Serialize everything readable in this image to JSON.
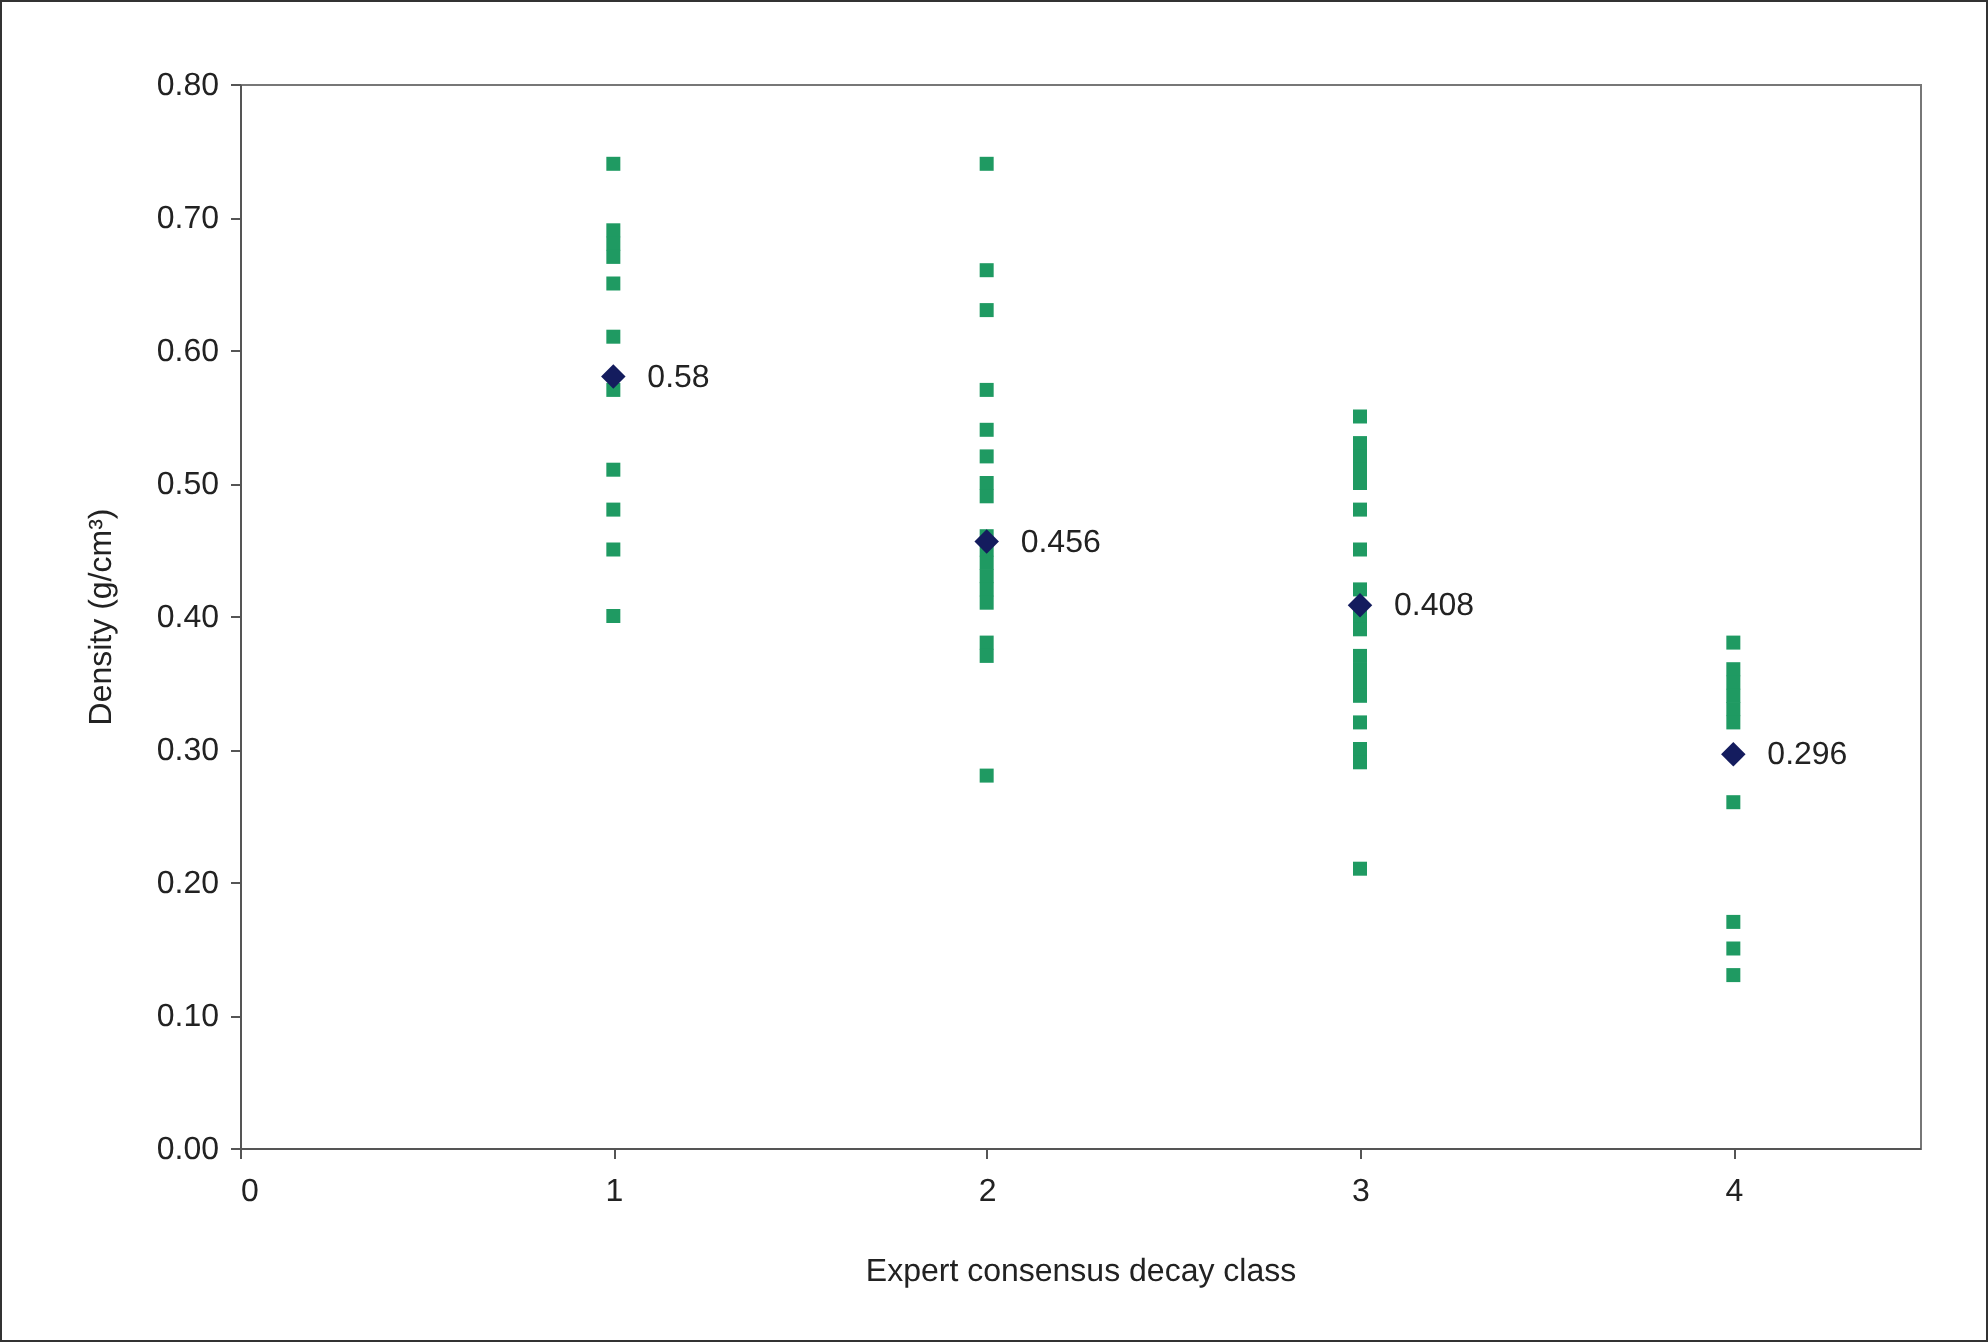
{
  "chart_data": {
    "type": "scatter",
    "xlabel": "Expert consensus decay class",
    "ylabel": "Density (g/cm³)",
    "xlim": [
      0,
      4.5
    ],
    "xticks": [
      0,
      1,
      2,
      3,
      4
    ],
    "ylim": [
      0,
      0.8
    ],
    "yticks": [
      {
        "value": 0,
        "label": "0.00"
      },
      {
        "value": 0.1,
        "label": "0.10"
      },
      {
        "value": 0.2,
        "label": "0.20"
      },
      {
        "value": 0.3,
        "label": "0.30"
      },
      {
        "value": 0.4,
        "label": "0.40"
      },
      {
        "value": 0.5,
        "label": "0.50"
      },
      {
        "value": 0.6,
        "label": "0.60"
      },
      {
        "value": 0.7,
        "label": "0.70"
      },
      {
        "value": 0.8,
        "label": "0.80"
      }
    ],
    "grid": false,
    "series": [
      {
        "marker": "square",
        "color": "#1f9a62",
        "x": [
          1,
          1,
          1,
          1,
          1,
          1,
          1,
          1,
          1,
          1,
          1,
          2,
          2,
          2,
          2,
          2,
          2,
          2,
          2,
          2,
          2,
          2,
          2,
          2,
          2,
          2,
          2,
          2,
          3,
          3,
          3,
          3,
          3,
          3,
          3,
          3,
          3,
          3,
          3,
          3,
          3,
          3,
          3,
          3,
          3,
          3,
          4,
          4,
          4,
          4,
          4,
          4,
          4,
          4,
          4,
          4
        ],
        "values": [
          0.74,
          0.69,
          0.68,
          0.67,
          0.65,
          0.61,
          0.57,
          0.51,
          0.48,
          0.45,
          0.4,
          0.74,
          0.66,
          0.63,
          0.57,
          0.54,
          0.52,
          0.5,
          0.49,
          0.46,
          0.45,
          0.44,
          0.43,
          0.42,
          0.41,
          0.38,
          0.37,
          0.28,
          0.55,
          0.53,
          0.52,
          0.51,
          0.5,
          0.48,
          0.45,
          0.42,
          0.4,
          0.39,
          0.37,
          0.36,
          0.35,
          0.34,
          0.32,
          0.3,
          0.29,
          0.21,
          0.38,
          0.36,
          0.35,
          0.34,
          0.33,
          0.32,
          0.26,
          0.17,
          0.15,
          0.13
        ]
      },
      {
        "marker": "diamond",
        "color": "#141c5e",
        "x": [
          1,
          2,
          3,
          4
        ],
        "values": [
          0.58,
          0.456,
          0.408,
          0.296
        ],
        "value_labels": [
          "0.58",
          "0.456",
          "0.408",
          "0.296"
        ]
      }
    ]
  }
}
